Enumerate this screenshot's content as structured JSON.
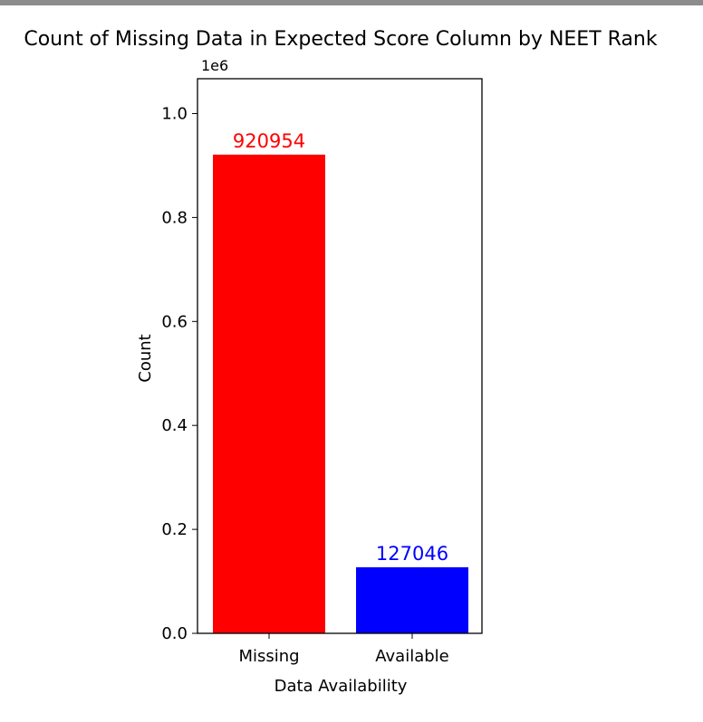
{
  "chart_data": {
    "type": "bar",
    "title": "Count of Missing Data in Expected Score Column by NEET Rank",
    "xlabel": "Data Availability",
    "ylabel": "Count",
    "y_offset_label": "1e6",
    "y_scale": 1000000,
    "categories": [
      "Missing",
      "Available"
    ],
    "values": [
      920954,
      127046
    ],
    "bar_colors": [
      "#ff0000",
      "#0000ff"
    ],
    "value_labels": [
      "920954",
      "127046"
    ],
    "ylim": [
      0,
      1067000
    ],
    "y_ticks": [
      0,
      200000,
      400000,
      600000,
      800000,
      1000000
    ],
    "y_tick_labels": [
      "0.0",
      "0.2",
      "0.4",
      "0.6",
      "0.8",
      "1.0"
    ],
    "grid": false
  }
}
